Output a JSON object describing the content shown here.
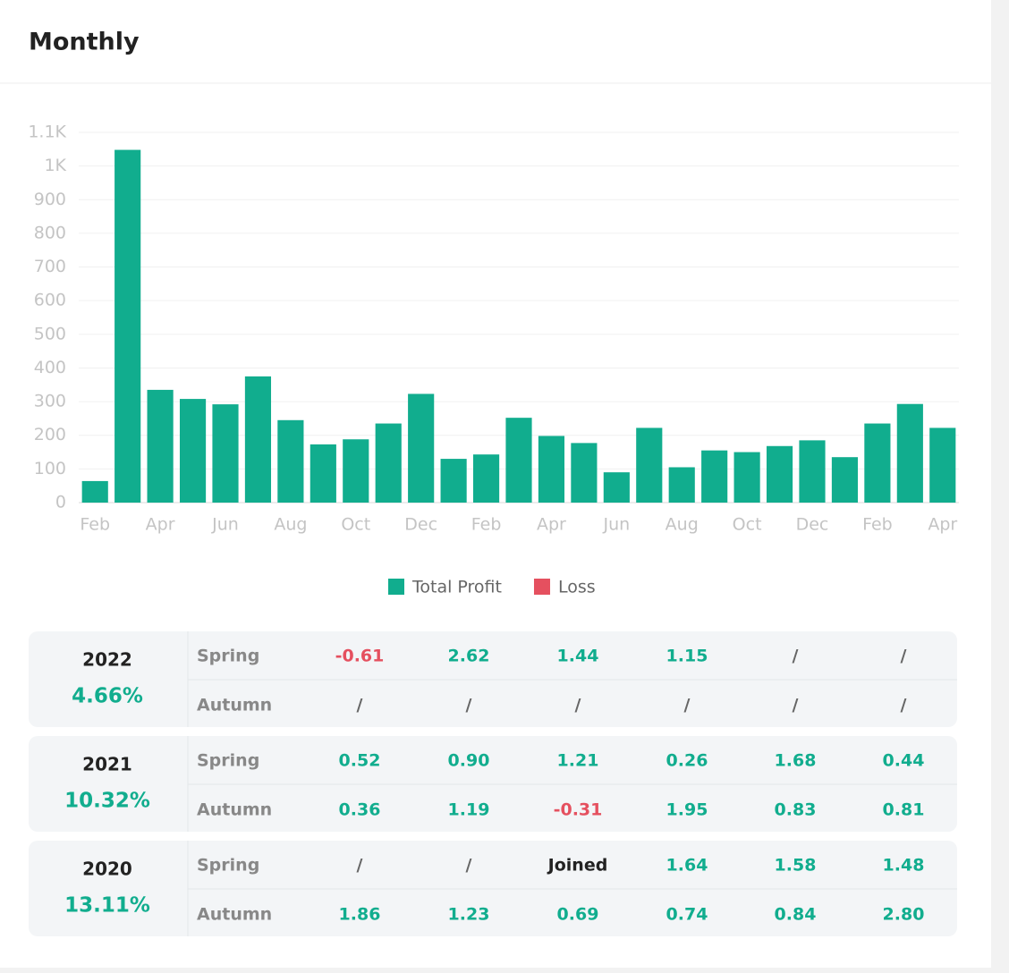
{
  "header": {
    "title": "Monthly"
  },
  "chart_data": {
    "type": "bar",
    "categories": [
      "Feb",
      null,
      "Apr",
      null,
      "Jun",
      null,
      "Aug",
      null,
      "Oct",
      null,
      "Dec",
      null,
      "Feb",
      null,
      "Apr",
      null,
      "Jun",
      null,
      "Aug",
      null,
      "Oct",
      null,
      "Dec",
      null,
      "Feb",
      null,
      "Apr"
    ],
    "series": [
      {
        "name": "Total Profit",
        "color": "#11ad8e",
        "values": [
          64,
          1048,
          335,
          308,
          292,
          375,
          245,
          173,
          188,
          235,
          323,
          130,
          143,
          252,
          198,
          177,
          90,
          222,
          105,
          155,
          150,
          168,
          185,
          135,
          235,
          293,
          222
        ]
      },
      {
        "name": "Loss",
        "color": "#e5505f",
        "values": [
          null,
          null,
          null,
          null,
          null,
          null,
          null,
          null,
          null,
          null,
          null,
          null,
          null,
          null,
          null,
          null,
          null,
          null,
          null,
          null,
          null,
          null,
          null,
          null,
          null,
          null,
          null
        ]
      }
    ],
    "ylim": [
      0,
      1100
    ],
    "yticks": [
      0,
      100,
      200,
      300,
      400,
      500,
      600,
      700,
      800,
      900,
      {
        "value": 1000,
        "label": "1K"
      },
      {
        "value": 1100,
        "label": "1.1K"
      }
    ],
    "grid": true,
    "legend": "bottom"
  },
  "table": {
    "blocks": [
      {
        "year": "2022",
        "total": "4.66%",
        "rows": [
          {
            "label": "Spring",
            "cells": [
              "-0.61",
              "2.62",
              "1.44",
              "1.15",
              "/",
              "/"
            ]
          },
          {
            "label": "Autumn",
            "cells": [
              "/",
              "/",
              "/",
              "/",
              "/",
              "/"
            ]
          }
        ]
      },
      {
        "year": "2021",
        "total": "10.32%",
        "rows": [
          {
            "label": "Spring",
            "cells": [
              "0.52",
              "0.90",
              "1.21",
              "0.26",
              "1.68",
              "0.44"
            ]
          },
          {
            "label": "Autumn",
            "cells": [
              "0.36",
              "1.19",
              "-0.31",
              "1.95",
              "0.83",
              "0.81"
            ]
          }
        ]
      },
      {
        "year": "2020",
        "total": "13.11%",
        "rows": [
          {
            "label": "Spring",
            "cells": [
              "/",
              "/",
              "Joined",
              "1.64",
              "1.58",
              "1.48"
            ]
          },
          {
            "label": "Autumn",
            "cells": [
              "1.86",
              "1.23",
              "0.69",
              "0.74",
              "0.84",
              "2.80"
            ]
          }
        ]
      }
    ]
  }
}
